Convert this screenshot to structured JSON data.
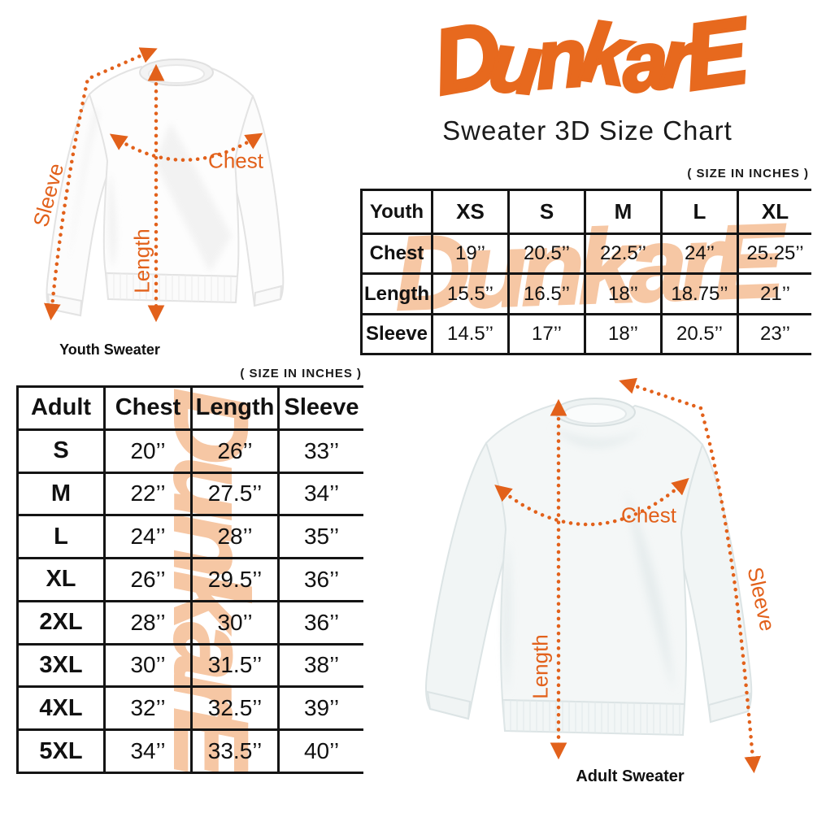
{
  "brand": {
    "logo_text": "DunkarE",
    "accent_color": "#e7691e"
  },
  "title": {
    "subtitle": "Sweater 3D Size Chart"
  },
  "size_note": "( SIZE IN INCHES )",
  "watermark": {
    "text": "DunkarE",
    "color": "#f6c7a4"
  },
  "measurement_labels": {
    "chest": "Chest",
    "length": "Length",
    "sleeve": "Sleeve"
  },
  "arrow_color": "#e2611b",
  "youth": {
    "caption": "Youth Sweater",
    "table": {
      "header": [
        "Youth",
        "XS",
        "S",
        "M",
        "L",
        "XL"
      ],
      "rows": [
        [
          "Chest",
          "19’’",
          "20.5’’",
          "22.5’’",
          "24’’",
          "25.25’’"
        ],
        [
          "Length",
          "15.5’’",
          "16.5’’",
          "18’’",
          "18.75’’",
          "21’’"
        ],
        [
          "Sleeve",
          "14.5’’",
          "17’’",
          "18’’",
          "20.5’’",
          "23’’"
        ]
      ]
    }
  },
  "adult": {
    "caption": "Adult Sweater",
    "table": {
      "header": [
        "Adult",
        "Chest",
        "Length",
        "Sleeve"
      ],
      "rows": [
        [
          "S",
          "20’’",
          "26’’",
          "33’’"
        ],
        [
          "M",
          "22’’",
          "27.5’’",
          "34’’"
        ],
        [
          "L",
          "24’’",
          "28’’",
          "35’’"
        ],
        [
          "XL",
          "26’’",
          "29.5’’",
          "36’’"
        ],
        [
          "2XL",
          "28’’",
          "30’’",
          "36’’"
        ],
        [
          "3XL",
          "30’’",
          "31.5’’",
          "38’’"
        ],
        [
          "4XL",
          "32’’",
          "32.5’’",
          "39’’"
        ],
        [
          "5XL",
          "34’’",
          "33.5’’",
          "40’’"
        ]
      ]
    }
  }
}
